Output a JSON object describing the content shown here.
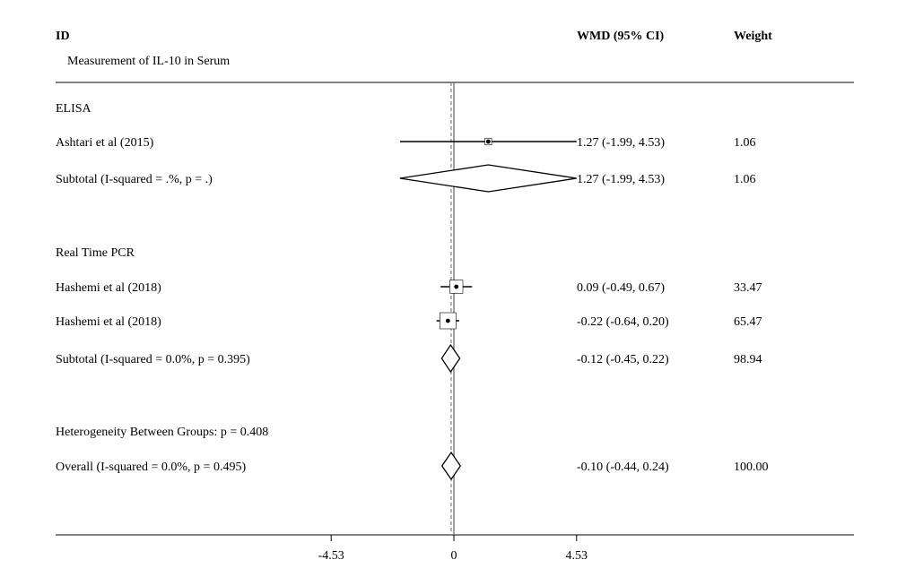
{
  "chart_data": {
    "type": "forest",
    "measure_label": "WMD (95% CI)",
    "columns": {
      "id": "ID",
      "effect": "WMD (95% CI)",
      "weight": "Weight"
    },
    "subtitle": "Measurement of IL-10 in Serum",
    "x_range": [
      -4.53,
      4.53
    ],
    "x_ticks": [
      {
        "value": -4.53,
        "label": "-4.53"
      },
      {
        "value": 0,
        "label": "0"
      },
      {
        "value": 4.53,
        "label": "4.53"
      }
    ],
    "rows": [
      {
        "kind": "group",
        "label": "ELISA"
      },
      {
        "kind": "study",
        "label": "Ashtari et al (2015)",
        "wmd": 1.27,
        "lower": -1.99,
        "upper": 4.53,
        "ci_text": "1.27 (-1.99, 4.53)",
        "weight": "1.06"
      },
      {
        "kind": "subtotal",
        "label": "Subtotal  (I-squared = .%, p = .)",
        "wmd": 1.27,
        "lower": -1.99,
        "upper": 4.53,
        "ci_text": "1.27 (-1.99, 4.53)",
        "weight": "1.06"
      },
      {
        "kind": "spacer"
      },
      {
        "kind": "group",
        "label": "Real Time PCR"
      },
      {
        "kind": "study",
        "label": "Hashemi et al (2018)",
        "wmd": 0.09,
        "lower": -0.49,
        "upper": 0.67,
        "ci_text": "0.09 (-0.49, 0.67)",
        "weight": "33.47"
      },
      {
        "kind": "study",
        "label": "Hashemi et al (2018)",
        "wmd": -0.22,
        "lower": -0.64,
        "upper": 0.2,
        "ci_text": "-0.22 (-0.64, 0.20)",
        "weight": "65.47"
      },
      {
        "kind": "subtotal",
        "label": "Subtotal  (I-squared = 0.0%, p = 0.395)",
        "wmd": -0.12,
        "lower": -0.45,
        "upper": 0.22,
        "ci_text": "-0.12 (-0.45, 0.22)",
        "weight": "98.94"
      },
      {
        "kind": "spacer"
      },
      {
        "kind": "note",
        "label": "Heterogeneity Between Groups: p = 0.408"
      },
      {
        "kind": "overall",
        "label": "Overall  (I-squared = 0.0%, p = 0.495)",
        "wmd": -0.1,
        "lower": -0.44,
        "upper": 0.24,
        "ci_text": "-0.10 (-0.44, 0.24)",
        "weight": "100.00"
      }
    ],
    "colors": {
      "line": "#000000",
      "reference_line": "#808080",
      "overall_line": "#808080"
    }
  }
}
